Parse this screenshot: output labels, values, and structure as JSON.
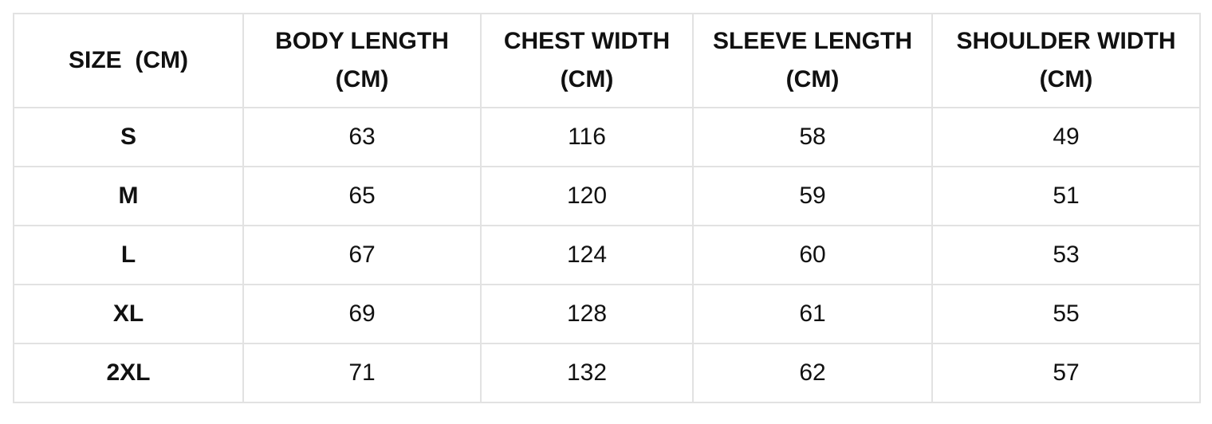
{
  "table": {
    "header": [
      "SIZE  (CM)",
      "BODY LENGTH\n(CM)",
      "CHEST WIDTH\n(CM)",
      "SLEEVE LENGTH\n(CM)",
      "SHOULDER WIDTH\n(CM)"
    ],
    "rows": [
      [
        "S",
        63,
        116,
        58,
        49
      ],
      [
        "M",
        65,
        120,
        59,
        51
      ],
      [
        "L",
        67,
        124,
        60,
        53
      ],
      [
        "XL",
        69,
        128,
        61,
        55
      ],
      [
        "2XL",
        71,
        132,
        62,
        57
      ]
    ]
  }
}
